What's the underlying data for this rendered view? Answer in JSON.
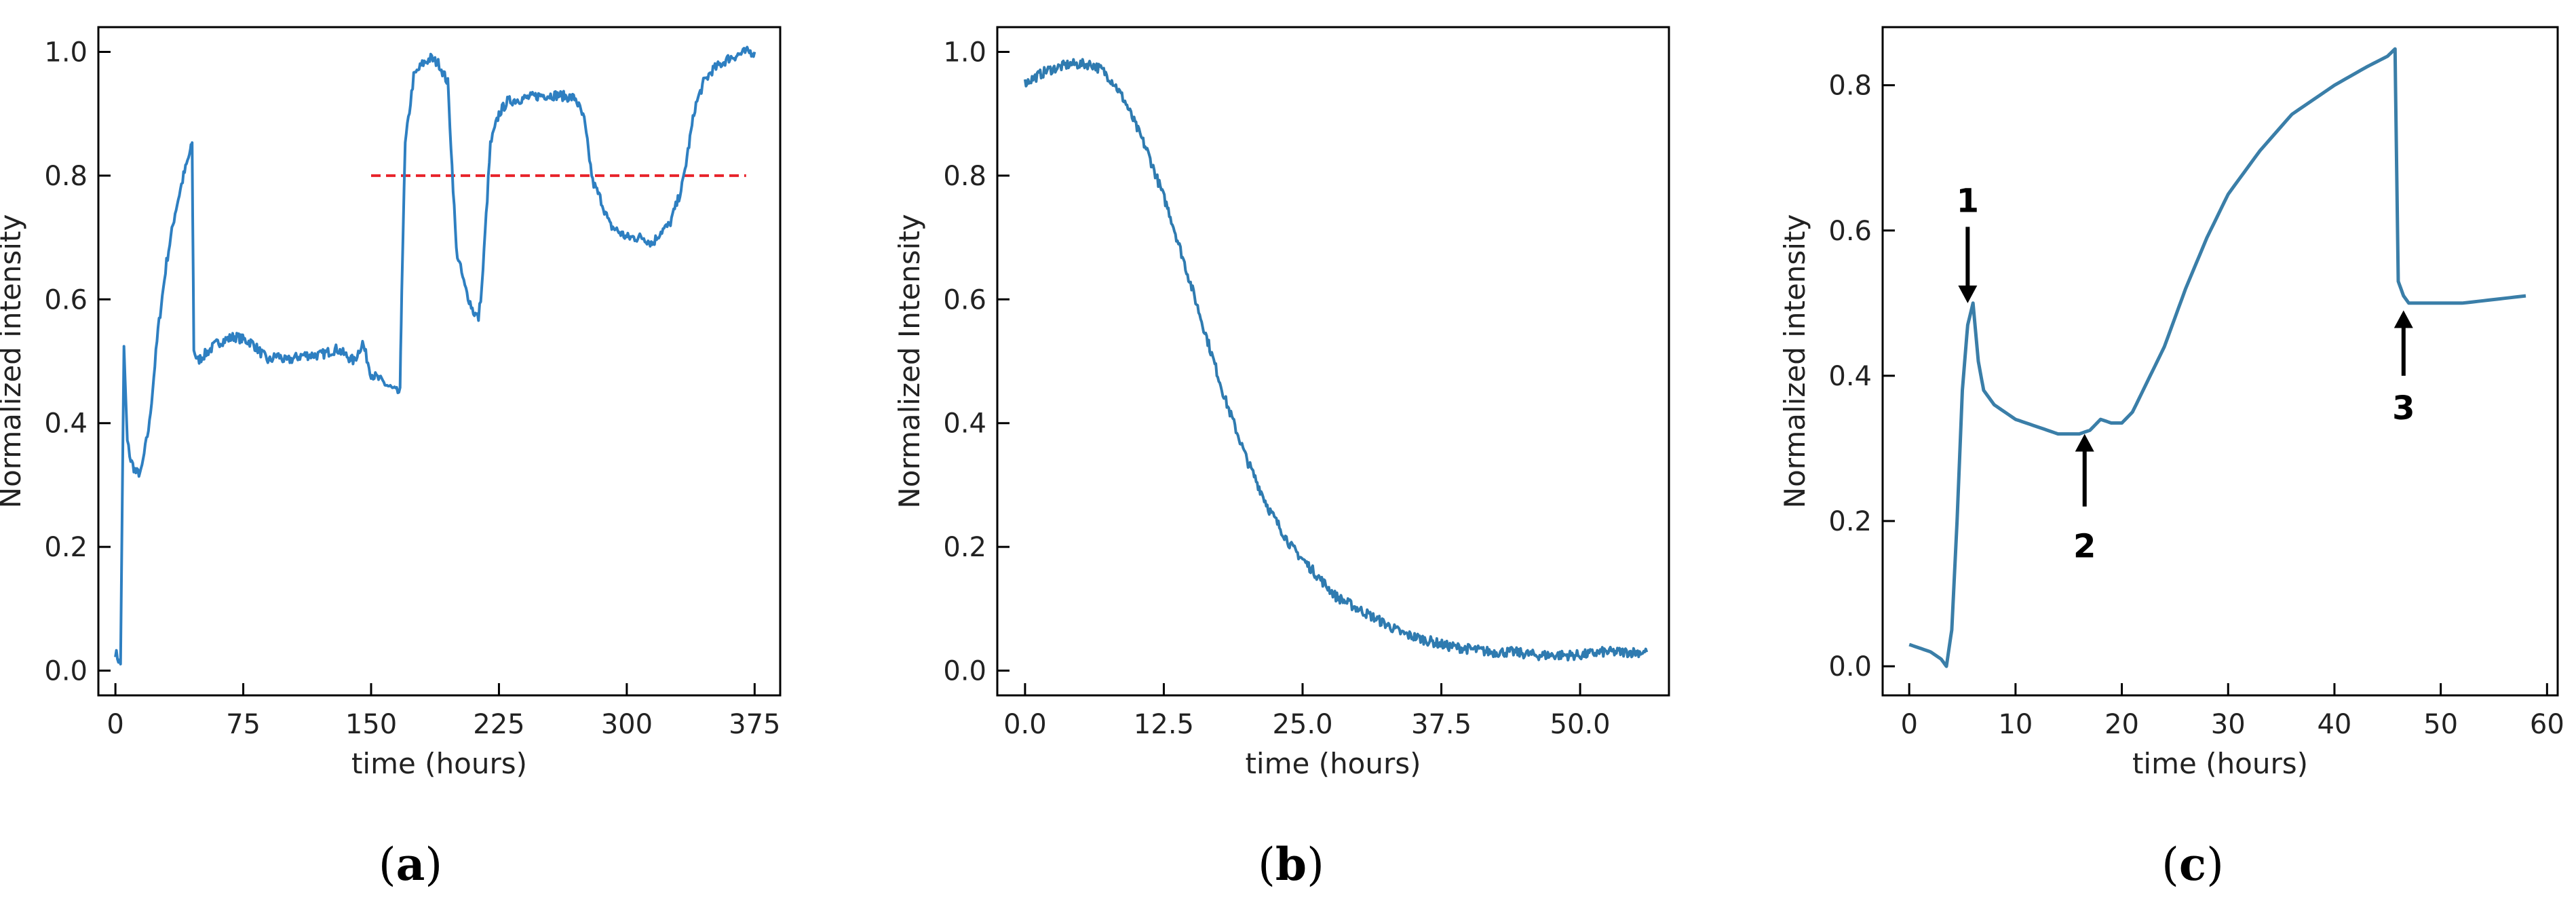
{
  "colors": {
    "line": "#2e7fc1",
    "line_b": "#2f7bb0",
    "line_c": "#3a7ea8",
    "ref": "#e8232a",
    "axis": "#000000"
  },
  "panels": [
    {
      "id": "a",
      "label_open": "(",
      "letter": "a",
      "label_close": ")"
    },
    {
      "id": "b",
      "label_open": "(",
      "letter": "b",
      "label_close": ")"
    },
    {
      "id": "c",
      "label_open": "(",
      "letter": "c",
      "label_close": ")"
    }
  ],
  "chart_data": [
    {
      "type": "line",
      "panel": "a",
      "xlabel": "time (hours)",
      "ylabel": "Normalized intensity",
      "xlim": [
        -10,
        390
      ],
      "ylim": [
        -0.04,
        1.04
      ],
      "xticks": [
        0,
        75,
        150,
        225,
        300,
        375
      ],
      "xtick_labels": [
        "0",
        "75",
        "150",
        "225",
        "300",
        "375"
      ],
      "yticks": [
        0.0,
        0.2,
        0.4,
        0.6,
        0.8,
        1.0
      ],
      "ytick_labels": [
        "0.0",
        "0.2",
        "0.4",
        "0.6",
        "0.8",
        "1.0"
      ],
      "series": [
        {
          "name": "intensity",
          "noise": 0.008,
          "x": [
            0,
            3,
            5,
            7,
            9,
            12,
            15,
            20,
            25,
            30,
            35,
            40,
            44,
            45,
            46,
            48,
            52,
            60,
            70,
            80,
            90,
            95,
            100,
            110,
            120,
            130,
            140,
            145,
            150,
            155,
            160,
            165,
            167,
            168,
            170,
            175,
            180,
            185,
            190,
            195,
            200,
            205,
            210,
            213,
            215,
            220,
            225,
            230,
            240,
            250,
            260,
            270,
            275,
            280,
            285,
            290,
            300,
            310,
            315,
            320,
            325,
            330,
            333,
            340,
            345,
            350,
            360,
            370,
            375
          ],
          "y": [
            0.03,
            0.01,
            0.52,
            0.37,
            0.34,
            0.32,
            0.32,
            0.4,
            0.55,
            0.66,
            0.74,
            0.8,
            0.84,
            0.85,
            0.52,
            0.5,
            0.51,
            0.53,
            0.54,
            0.53,
            0.5,
            0.51,
            0.5,
            0.51,
            0.51,
            0.52,
            0.5,
            0.53,
            0.48,
            0.47,
            0.46,
            0.45,
            0.45,
            0.62,
            0.85,
            0.96,
            0.98,
            0.99,
            0.98,
            0.95,
            0.68,
            0.62,
            0.58,
            0.57,
            0.62,
            0.85,
            0.9,
            0.92,
            0.925,
            0.93,
            0.93,
            0.925,
            0.89,
            0.79,
            0.76,
            0.72,
            0.7,
            0.7,
            0.69,
            0.71,
            0.72,
            0.76,
            0.79,
            0.91,
            0.95,
            0.97,
            0.99,
            1.0,
            1.0
          ]
        }
      ],
      "reference_line": {
        "y": 0.8,
        "x_start": 150,
        "x_end": 370,
        "style": "dashed"
      }
    },
    {
      "type": "line",
      "panel": "b",
      "xlabel": "time (hours)",
      "ylabel": "Normalized Intensity",
      "xlim": [
        -2.5,
        58
      ],
      "ylim": [
        -0.04,
        1.04
      ],
      "xticks": [
        0,
        12.5,
        25,
        37.5,
        50
      ],
      "xtick_labels": [
        "0.0",
        "12.5",
        "25.0",
        "37.5",
        "50.0"
      ],
      "yticks": [
        0.0,
        0.2,
        0.4,
        0.6,
        0.8,
        1.0
      ],
      "ytick_labels": [
        "0.0",
        "0.2",
        "0.4",
        "0.6",
        "0.8",
        "1.0"
      ],
      "series": [
        {
          "name": "intensity",
          "noise": 0.008,
          "x": [
            0,
            2,
            4,
            6,
            7,
            8,
            9,
            10,
            11,
            12,
            13,
            14,
            15,
            16,
            17,
            18,
            19,
            20,
            21,
            22,
            23,
            24,
            25,
            26,
            28,
            30,
            32,
            34,
            36,
            38,
            40,
            42,
            44,
            46,
            48,
            50,
            52,
            54,
            56
          ],
          "y": [
            0.95,
            0.97,
            0.98,
            0.98,
            0.97,
            0.95,
            0.92,
            0.88,
            0.84,
            0.79,
            0.74,
            0.68,
            0.62,
            0.56,
            0.5,
            0.44,
            0.39,
            0.34,
            0.3,
            0.26,
            0.23,
            0.2,
            0.18,
            0.16,
            0.12,
            0.1,
            0.08,
            0.06,
            0.05,
            0.04,
            0.035,
            0.03,
            0.03,
            0.025,
            0.025,
            0.025,
            0.03,
            0.03,
            0.03
          ]
        }
      ]
    },
    {
      "type": "line",
      "panel": "c",
      "xlabel": "time (hours)",
      "ylabel": "Normalized intensity",
      "xlim": [
        -2.5,
        61
      ],
      "ylim": [
        -0.04,
        0.88
      ],
      "xticks": [
        0,
        10,
        20,
        30,
        40,
        50,
        60
      ],
      "xtick_labels": [
        "0",
        "10",
        "20",
        "30",
        "40",
        "50",
        "60"
      ],
      "yticks": [
        0.0,
        0.2,
        0.4,
        0.6,
        0.8
      ],
      "ytick_labels": [
        "0.0",
        "0.2",
        "0.4",
        "0.6",
        "0.8"
      ],
      "series": [
        {
          "name": "intensity",
          "noise": 0,
          "x": [
            0,
            1,
            2,
            3,
            3.5,
            4,
            4.5,
            5,
            5.5,
            6,
            6.5,
            7,
            8,
            10,
            12,
            14,
            16,
            17,
            18,
            19,
            20,
            21,
            22,
            24,
            26,
            28,
            30,
            33,
            36,
            40,
            43,
            45,
            45.7,
            46,
            46.5,
            47,
            48,
            50,
            52,
            55,
            58
          ],
          "y": [
            0.03,
            0.025,
            0.02,
            0.01,
            0.0,
            0.05,
            0.2,
            0.38,
            0.47,
            0.5,
            0.42,
            0.38,
            0.36,
            0.34,
            0.33,
            0.32,
            0.32,
            0.325,
            0.34,
            0.335,
            0.335,
            0.35,
            0.38,
            0.44,
            0.52,
            0.59,
            0.65,
            0.71,
            0.76,
            0.8,
            0.825,
            0.84,
            0.85,
            0.53,
            0.51,
            0.5,
            0.5,
            0.5,
            0.5,
            0.505,
            0.51
          ]
        }
      ],
      "annotations": [
        {
          "text": "1",
          "x": 5.5,
          "y_tail": 0.605,
          "y_head": 0.5,
          "label_y": 0.62,
          "label_pos": "above"
        },
        {
          "text": "2",
          "x": 16.5,
          "y_tail": 0.22,
          "y_head": 0.32,
          "label_y": 0.18,
          "label_pos": "below"
        },
        {
          "text": "3",
          "x": 46.5,
          "y_tail": 0.4,
          "y_head": 0.49,
          "label_y": 0.37,
          "label_pos": "below"
        }
      ]
    }
  ]
}
